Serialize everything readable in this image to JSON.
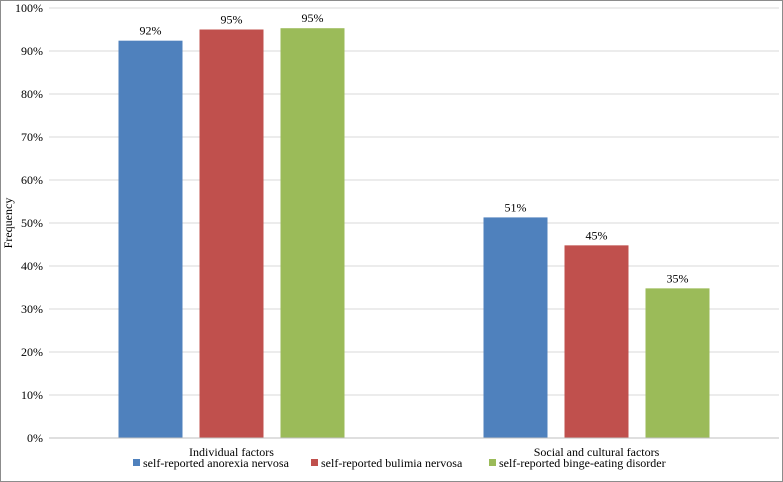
{
  "chart_data": {
    "type": "bar",
    "title": "",
    "xlabel": "",
    "ylabel": "Frequency",
    "ylim": [
      0,
      100
    ],
    "yticks": [
      "0%",
      "10%",
      "20%",
      "30%",
      "40%",
      "50%",
      "60%",
      "70%",
      "80%",
      "90%",
      "100%"
    ],
    "grid": true,
    "legend_position": "bottom",
    "categories": [
      "Individual factors",
      "Social and cultural factors"
    ],
    "series": [
      {
        "name": "self-reported anorexia nervosa",
        "color": "#4f81bd",
        "values": [
          92.4,
          51.3
        ],
        "labels": [
          "92%",
          "51%"
        ]
      },
      {
        "name": "self-reported bulimia nervosa",
        "color": "#c0504d",
        "values": [
          95.0,
          44.8
        ],
        "labels": [
          "95%",
          "45%"
        ]
      },
      {
        "name": "self-reported binge-eating disorder",
        "color": "#9bbb59",
        "values": [
          95.3,
          34.8
        ],
        "labels": [
          "95%",
          "35%"
        ]
      }
    ]
  }
}
